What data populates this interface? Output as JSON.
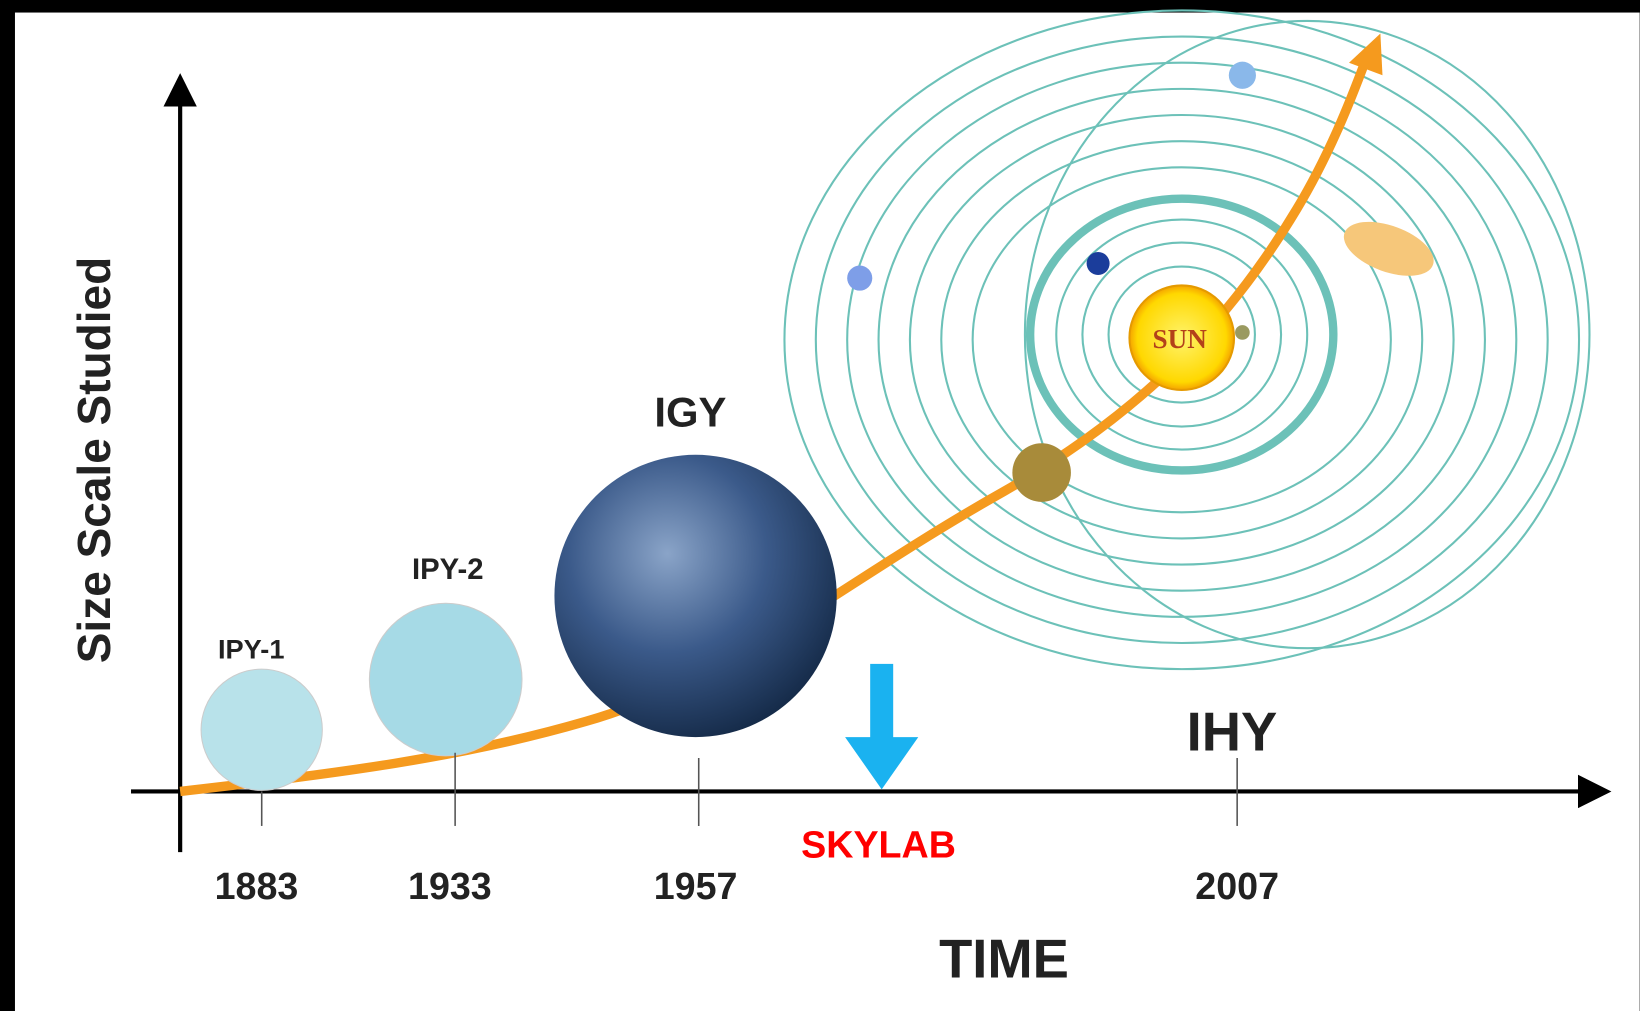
{
  "axis": {
    "y_label": "Size Scale Studied",
    "x_label": "TIME"
  },
  "events": [
    {
      "label": "IPY-1",
      "year": "1883"
    },
    {
      "label": "IPY-2",
      "year": "1933"
    },
    {
      "label": "IGY",
      "year": "1957"
    },
    {
      "label": "IHY",
      "year": "2007"
    }
  ],
  "annotation": "SKYLAB",
  "sun": "SUN"
}
